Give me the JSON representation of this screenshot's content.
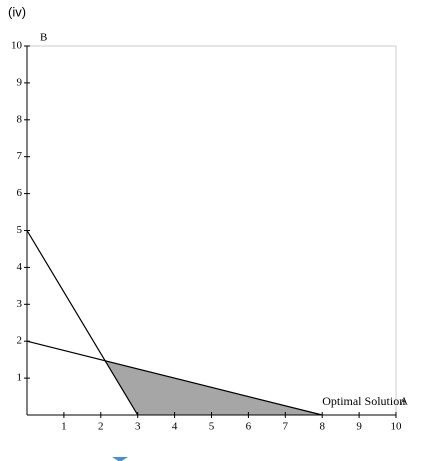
{
  "chart_data": {
    "type": "line",
    "title": "(iv)",
    "xlabel": "A",
    "ylabel": "B",
    "xlim": [
      0,
      10
    ],
    "ylim": [
      0,
      10
    ],
    "xticks": [
      1,
      2,
      3,
      4,
      5,
      6,
      7,
      8,
      9,
      10
    ],
    "yticks": [
      1,
      2,
      3,
      4,
      5,
      6,
      7,
      8,
      9,
      10
    ],
    "series": [
      {
        "color": "#000000",
        "x": [
          0,
          3
        ],
        "values": [
          5,
          0
        ]
      },
      {
        "color": "#000000",
        "x": [
          0,
          8
        ],
        "values": [
          2,
          0
        ]
      }
    ],
    "region": {
      "color": "#a6a6a6",
      "x": [
        2.12,
        3,
        8
      ],
      "values": [
        1.47,
        0,
        0
      ]
    },
    "annotations": [
      {
        "text": "Optimal Solution",
        "x": 8,
        "y": 0
      }
    ]
  }
}
